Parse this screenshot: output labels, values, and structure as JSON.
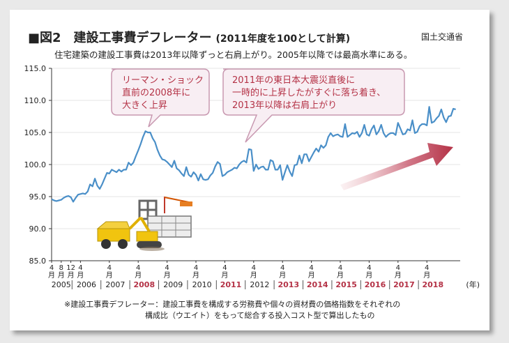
{
  "header": {
    "title": "■図2　建設工事費デフレーター",
    "title_sub": "(2011年度を100として計算)",
    "source": "国土交通省",
    "subtitle": "住宅建築の建設工事費は2013年以降ずっと右肩上がり。2005年以降では最高水準にある。"
  },
  "notes": {
    "line1": "※建設工事費デフレーター：建設工事費を構成する労務費や個々の資材費の価格指数をそれぞれの",
    "line2": "構成比（ウエイト）をもって総合する投入コスト型で算出したもの"
  },
  "annotations": {
    "left": [
      "リーマン・ショック",
      "直前の2008年に",
      "大きく上昇"
    ],
    "right": [
      "2011年の東日本大震災直後に",
      "一時的に上昇したがすぐに落ち着き、",
      "2013年以降は右肩上がり"
    ]
  },
  "colors": {
    "line": "#4a8fc8",
    "accent": "#b43246",
    "callout_fill": "#f8eef3",
    "callout_stroke": "#c898b0"
  },
  "icons": [
    "construction-site-illustration",
    "trend-up-arrow"
  ],
  "chart_data": {
    "type": "line",
    "ylim": [
      85.0,
      115.0
    ],
    "yticks": [
      "85.0",
      "90.0",
      "95.0",
      "100.0",
      "105.0",
      "110.0",
      "115.0"
    ],
    "ylabel": "",
    "xlabel": "",
    "x_unit": "(年)",
    "month_labels": [
      "4月",
      "8月",
      "12月",
      "4月",
      "4月",
      "4月",
      "4月",
      "4月",
      "4月",
      "4月",
      "4月",
      "4月",
      "4月",
      "4月",
      "4月",
      "4月"
    ],
    "years": [
      "2005",
      "2006",
      "2007",
      "2008",
      "2009",
      "2010",
      "2011",
      "2012",
      "2013",
      "2014",
      "2015",
      "2016",
      "2017",
      "2018"
    ],
    "highlight_years": [
      "2008",
      "2011",
      "2013",
      "2014",
      "2015",
      "2016",
      "2017",
      "2018"
    ],
    "series": [
      {
        "x_start": "2005-04",
        "frequency": "monthly",
        "values": [
          94.6,
          94.4,
          94.3,
          94.4,
          94.5,
          94.8,
          95.0,
          95.1,
          94.9,
          94.2,
          94.8,
          95.3,
          95.4,
          95.5,
          95.4,
          95.8,
          96.9,
          96.6,
          97.8,
          96.7,
          96.2,
          96.9,
          97.8,
          98.7,
          98.6,
          99.2,
          99.0,
          98.8,
          99.2,
          98.9,
          99.2,
          99.2,
          100.3,
          99.9,
          100.3,
          101.3,
          102.2,
          103.2,
          104.3,
          105.2,
          105.0,
          105.0,
          104.1,
          103.5,
          102.3,
          101.4,
          100.8,
          100.7,
          100.4,
          100.0,
          99.6,
          100.6,
          99.4,
          99.1,
          98.6,
          98.2,
          99.6,
          98.4,
          98.1,
          98.8,
          98.4,
          97.5,
          98.5,
          97.7,
          97.6,
          97.7,
          98.3,
          98.7,
          99.7,
          100.4,
          100.1,
          98.2,
          98.4,
          98.8,
          99.0,
          99.2,
          99.5,
          99.4,
          100.0,
          100.4,
          100.6,
          100.3,
          102.4,
          102.3,
          99.0,
          100.0,
          99.3,
          99.6,
          99.7,
          99.2,
          99.2,
          100.7,
          100.5,
          99.2,
          99.2,
          99.9,
          97.6,
          98.8,
          99.9,
          98.9,
          98.2,
          99.9,
          100.0,
          101.4,
          100.2,
          101.6,
          101.6,
          100.5,
          101.2,
          101.9,
          102.5,
          102.0,
          103.0,
          102.6,
          103.0,
          104.3,
          104.9,
          104.4,
          104.6,
          104.7,
          104.4,
          104.3,
          106.3,
          104.3,
          104.6,
          104.9,
          104.8,
          105.1,
          104.3,
          104.9,
          106.2,
          104.7,
          104.5,
          105.5,
          106.1,
          104.7,
          105.2,
          106.2,
          104.9,
          104.3,
          104.7,
          104.9,
          104.9,
          104.6,
          106.5,
          105.6,
          104.7,
          104.8,
          105.5,
          105.3,
          106.9,
          104.9,
          105.1,
          106.0,
          106.3,
          106.3,
          106.1,
          109.0,
          106.5,
          106.7,
          107.2,
          107.6,
          108.6,
          107.3,
          106.6,
          107.5,
          107.6,
          108.7,
          108.6
        ]
      }
    ]
  }
}
